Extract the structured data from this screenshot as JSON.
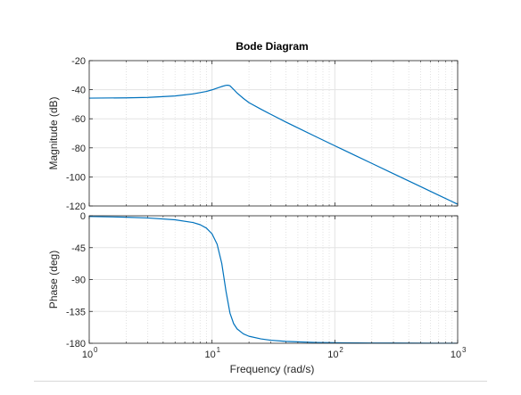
{
  "chart_data": {
    "type": "line",
    "title": "Bode Diagram",
    "xlabel": "Frequency  (rad/s)",
    "x_scale": "log",
    "xlim": [
      1,
      1000
    ],
    "x_ticks": [
      {
        "value": 1,
        "base": "10",
        "exp": "0"
      },
      {
        "value": 10,
        "base": "10",
        "exp": "1"
      },
      {
        "value": 100,
        "base": "10",
        "exp": "2"
      },
      {
        "value": 1000,
        "base": "10",
        "exp": "3"
      }
    ],
    "grid": true,
    "line_color": "#0072BD",
    "panels": [
      {
        "name": "magnitude",
        "ylabel": "Magnitude (dB)",
        "ylim": [
          -120,
          -20
        ],
        "y_ticks": [
          {
            "value": -20,
            "label": "-20"
          },
          {
            "value": -40,
            "label": "-40"
          },
          {
            "value": -60,
            "label": "-60"
          },
          {
            "value": -80,
            "label": "-80"
          },
          {
            "value": -100,
            "label": "-100"
          },
          {
            "value": -120,
            "label": "-120"
          }
        ],
        "series": [
          {
            "x": [
              1,
              2,
              3,
              5,
              7,
              9,
              10,
              11,
              12,
              13,
              13.5,
              14,
              15,
              16,
              18,
              20,
              25,
              30,
              40,
              50,
              70,
              100,
              150,
              200,
              300,
              500,
              700,
              1000
            ],
            "y": [
              -45.8,
              -45.6,
              -45.3,
              -44.3,
              -42.9,
              -41.2,
              -40.1,
              -38.9,
              -37.8,
              -37.0,
              -36.9,
              -37.3,
              -39.8,
              -42.3,
              -46.0,
              -48.9,
              -53.4,
              -56.9,
              -62.3,
              -66.3,
              -72.3,
              -78.6,
              -85.7,
              -90.7,
              -97.8,
              -106.7,
              -112.6,
              -118.8
            ]
          }
        ]
      },
      {
        "name": "phase",
        "ylabel": "Phase (deg)",
        "ylim": [
          -180,
          0
        ],
        "y_ticks": [
          {
            "value": 0,
            "label": "0"
          },
          {
            "value": -45,
            "label": "-45"
          },
          {
            "value": -90,
            "label": "-90"
          },
          {
            "value": -135,
            "label": "-135"
          },
          {
            "value": -180,
            "label": "-180"
          }
        ],
        "series": [
          {
            "x": [
              1,
              2,
              3,
              5,
              7,
              8,
              9,
              10,
              11,
              12,
              13,
              14,
              15,
              16,
              18,
              20,
              25,
              30,
              40,
              50,
              70,
              100,
              150,
              200,
              300,
              500,
              700,
              1000
            ],
            "y": [
              -1.0,
              -2.0,
              -3.1,
              -5.7,
              -9.5,
              -12.6,
              -17.4,
              -25.5,
              -40.1,
              -67.2,
              -106.7,
              -137.4,
              -152.3,
              -159.7,
              -166.7,
              -170.1,
              -173.8,
              -175.7,
              -177.3,
              -178.0,
              -178.8,
              -179.2,
              -179.5,
              -179.6,
              -179.7,
              -179.8,
              -179.9,
              -179.9
            ]
          }
        ]
      }
    ]
  }
}
